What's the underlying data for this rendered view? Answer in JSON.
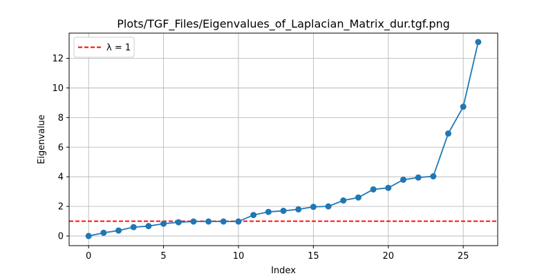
{
  "chart_data": {
    "type": "line",
    "title": "Plots/TGF_Files/Eigenvalues_of_Laplacian_Matrix_dur.tgf.png",
    "xlabel": "Index",
    "ylabel": "Eigenvalue",
    "xlim": [
      -1.3,
      27.3
    ],
    "ylim": [
      -0.65,
      13.7
    ],
    "xticks": [
      0,
      5,
      10,
      15,
      20,
      25
    ],
    "yticks": [
      0,
      2,
      4,
      6,
      8,
      10,
      12
    ],
    "xtick_labels": [
      "0",
      "5",
      "10",
      "15",
      "20",
      "25"
    ],
    "ytick_labels": [
      "0",
      "2",
      "4",
      "6",
      "8",
      "10",
      "12"
    ],
    "grid": true,
    "legend_position": "top-left",
    "series": [
      {
        "color": "#1f77b4",
        "marker": "circle",
        "x": [
          0,
          1,
          2,
          3,
          4,
          5,
          6,
          7,
          8,
          9,
          10,
          11,
          12,
          13,
          14,
          15,
          16,
          17,
          18,
          19,
          20,
          21,
          22,
          23,
          24,
          25,
          26
        ],
        "values": [
          0.0,
          0.22,
          0.37,
          0.6,
          0.67,
          0.83,
          0.93,
          0.98,
          0.98,
          0.98,
          0.98,
          1.42,
          1.63,
          1.7,
          1.8,
          1.97,
          2.0,
          2.4,
          2.6,
          3.15,
          3.25,
          3.8,
          3.95,
          4.03,
          6.92,
          8.73,
          13.1
        ]
      }
    ],
    "reference_lines": [
      {
        "name": "λ = 1",
        "y": 1,
        "color": "#ff0000",
        "style": "dashed"
      }
    ]
  }
}
